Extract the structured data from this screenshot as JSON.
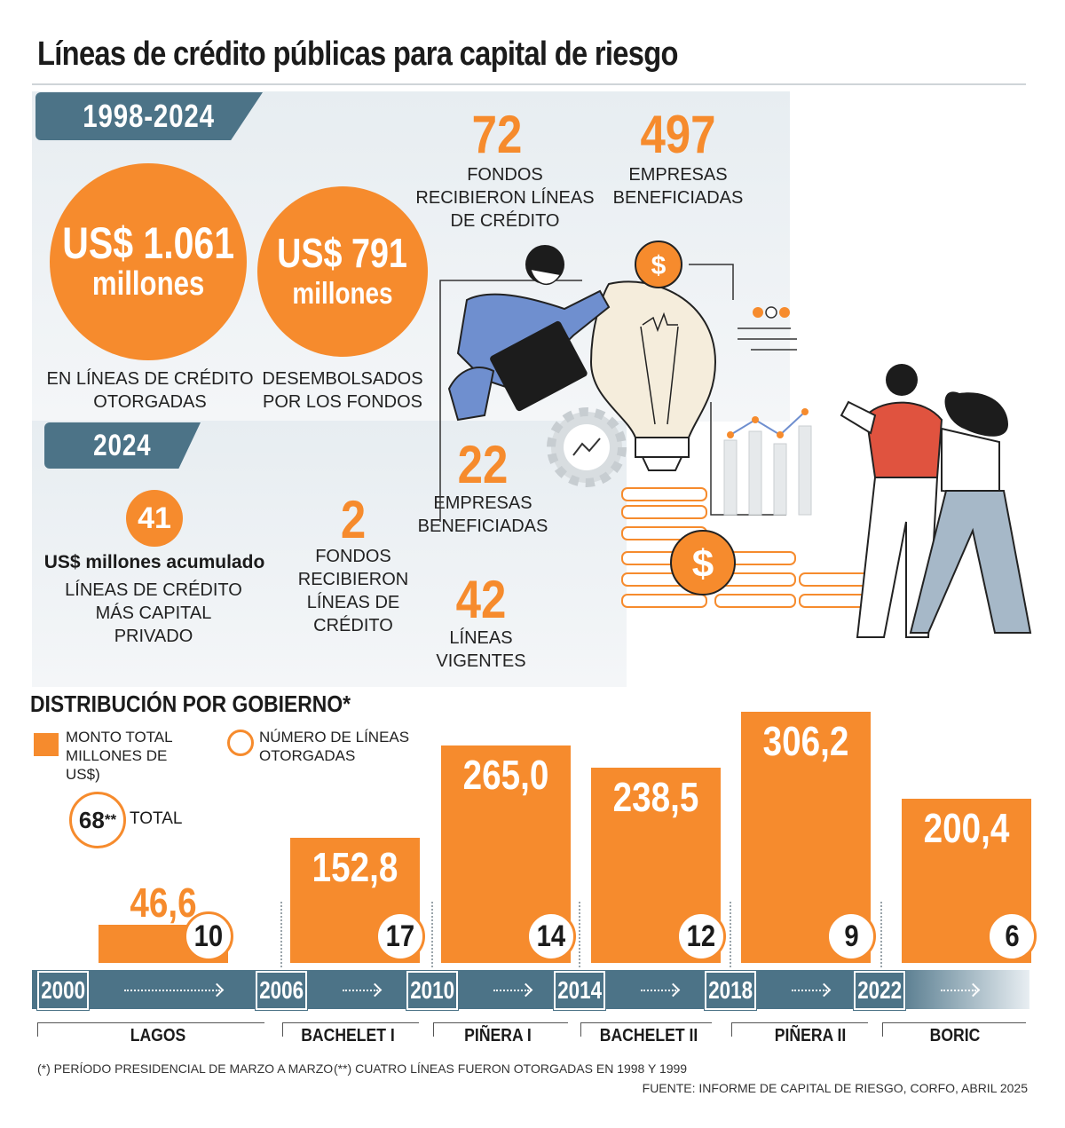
{
  "title": "Líneas de crédito públicas para capital de riesgo",
  "period_1": {
    "label": "1998-2024",
    "credit_lines_amount": "US$ 1.061",
    "credit_lines_unit": "millones",
    "credit_lines_caption": "EN LÍNEAS DE CRÉDITO OTORGADAS",
    "disbursed_amount": "US$ 791",
    "disbursed_unit": "millones",
    "disbursed_caption": "DESEMBOLSADOS POR LOS FONDOS",
    "funds_number": "72",
    "funds_caption": "FONDOS RECIBIERON LÍNEAS DE CRÉDITO",
    "companies_number": "497",
    "companies_caption": "EMPRESAS BENEFICIADAS"
  },
  "period_2": {
    "label": "2024",
    "accum_number": "41",
    "accum_bold": "US$ millones acumulado",
    "accum_caption": "LÍNEAS DE CRÉDITO MÁS CAPITAL PRIVADO",
    "funds_number": "2",
    "funds_caption": "FONDOS RECIBIERON LÍNEAS DE CRÉDITO",
    "companies_number": "22",
    "companies_caption": "EMPRESAS BENEFICIADAS",
    "lines_number": "42",
    "lines_caption": "LÍNEAS VIGENTES"
  },
  "distribution": {
    "title": "DISTRIBUCIÓN POR GOBIERNO*",
    "legend_amount": "MONTO TOTAL MILLONES DE US$)",
    "legend_lines": "NÚMERO DE LÍNEAS OTORGADAS",
    "total_number": "68",
    "total_mark": "**",
    "total_label": "TOTAL"
  },
  "chart_data": {
    "type": "bar",
    "categories": [
      "LAGOS",
      "BACHELET I",
      "PIÑERA I",
      "BACHELET II",
      "PIÑERA II",
      "BORIC"
    ],
    "series": [
      {
        "name": "MONTO TOTAL MILLONES DE US$)",
        "values": [
          46.6,
          152.8,
          265.0,
          238.5,
          306.2,
          200.4
        ],
        "labels": [
          "46,6",
          "152,8",
          "265,0",
          "238,5",
          "306,2",
          "200,4"
        ]
      },
      {
        "name": "NÚMERO DE LÍNEAS OTORGADAS",
        "values": [
          10,
          17,
          14,
          12,
          9,
          6
        ]
      }
    ],
    "years": [
      "2000",
      "2006",
      "2010",
      "2014",
      "2018",
      "2022"
    ],
    "ylim": [
      0,
      320
    ],
    "colors": {
      "bar": "#f68b2d",
      "timeline": "#4c7387"
    }
  },
  "footnotes": {
    "note_1": "(*) PERÍODO PRESIDENCIAL DE MARZO A MARZO",
    "note_2": "(**) CUATRO LÍNEAS FUERON OTORGADAS EN 1998 Y 1999",
    "source": "FUENTE: INFORME DE CAPITAL DE RIESGO, CORFO, ABRIL 2025"
  },
  "icons": [
    "dollar-coin-icon",
    "lightbulb-icon",
    "gear-chart-icon",
    "bar-chart-icon",
    "people-illustration"
  ]
}
